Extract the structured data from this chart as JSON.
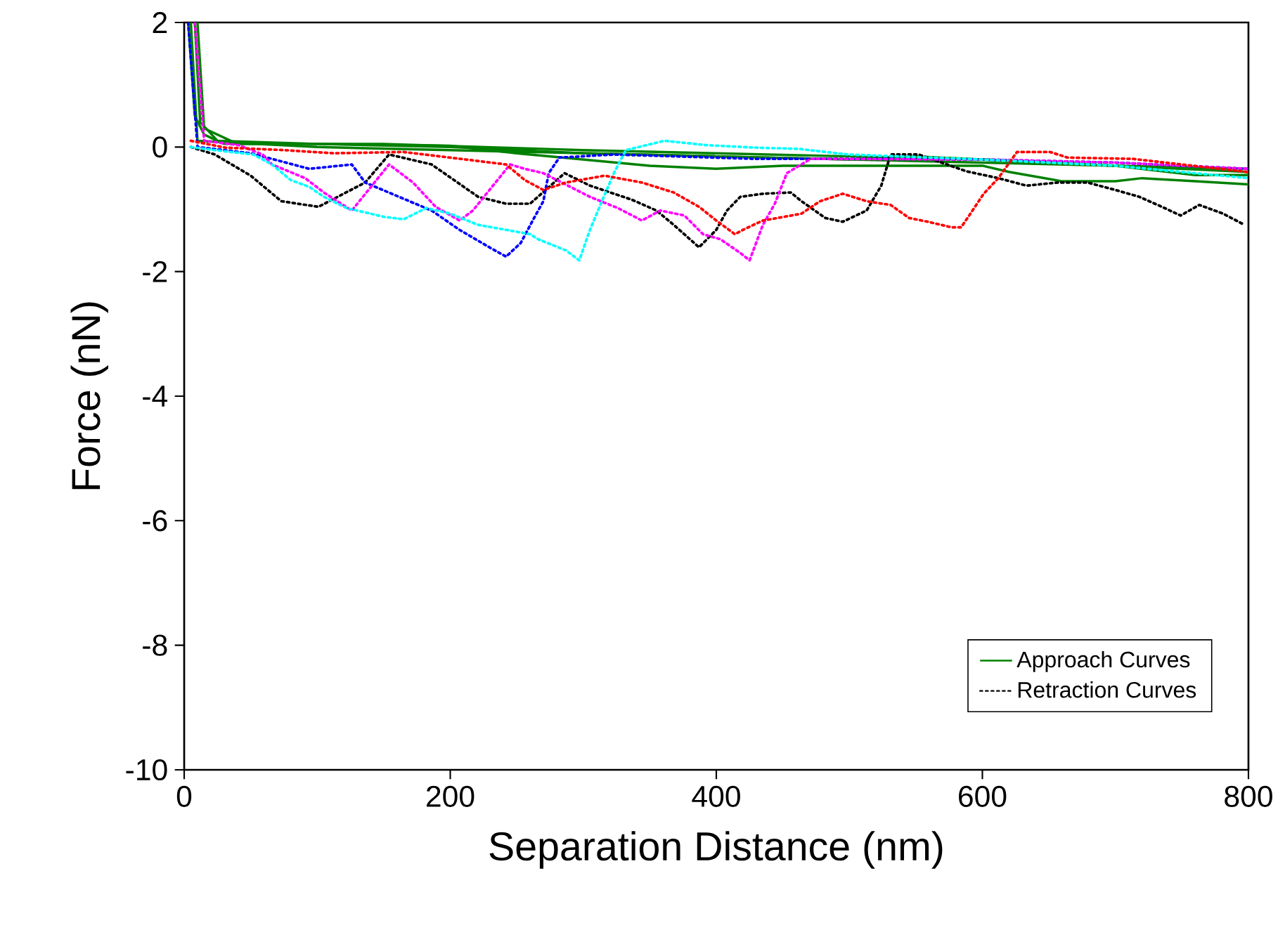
{
  "chart_data": {
    "type": "line",
    "xlabel": "Separation Distance (nm)",
    "ylabel": "Force (nN)",
    "xlim": [
      0,
      800
    ],
    "xticks": [
      0,
      200,
      400,
      600,
      800
    ],
    "ylim": [
      -10,
      2
    ],
    "yticks": [
      -10,
      -8,
      -6,
      -4,
      -2,
      0,
      2
    ],
    "grid": false,
    "legend": "bottom right",
    "series": [
      {
        "name": "Approach Curves",
        "color": "#008000",
        "line_style": "solid",
        "x": [
          3,
          8,
          15,
          30,
          100,
          200,
          300,
          400,
          500,
          600,
          700,
          800
        ],
        "values": [
          2,
          0.5,
          0.2,
          0.05,
          0.05,
          0.0,
          -0.1,
          -0.15,
          -0.2,
          -0.25,
          -0.3,
          -0.4
        ]
      },
      {
        "color": "#008000",
        "line_style": "solid",
        "x": [
          8,
          12,
          25,
          100,
          200,
          250,
          300,
          350,
          400,
          450,
          500,
          550,
          600,
          620,
          660,
          700,
          720,
          760,
          800
        ],
        "values": [
          2,
          0.4,
          0.1,
          0.05,
          0.02,
          -0.1,
          -0.2,
          -0.3,
          -0.35,
          -0.3,
          -0.3,
          -0.3,
          -0.3,
          -0.4,
          -0.55,
          -0.55,
          -0.5,
          -0.55,
          -0.6
        ]
      },
      {
        "color": "#008000",
        "line_style": "solid",
        "x": [
          10,
          15,
          40,
          150,
          300,
          400,
          500,
          600,
          650,
          700,
          760,
          800
        ],
        "values": [
          2,
          0.3,
          0.05,
          0.05,
          -0.05,
          -0.1,
          -0.15,
          -0.2,
          -0.25,
          -0.3,
          -0.45,
          -0.45
        ]
      },
      {
        "color": "#008000",
        "line_style": "solid",
        "x": [
          5,
          10,
          100,
          200,
          300,
          400,
          500,
          550,
          600,
          700,
          800
        ],
        "values": [
          2,
          0.1,
          0.0,
          -0.05,
          -0.1,
          -0.15,
          -0.2,
          -0.15,
          -0.2,
          -0.3,
          -0.35
        ]
      },
      {
        "name": "Retraction Curves",
        "color": "#000000",
        "line_style": "dotted",
        "x": [
          5,
          23,
          50,
          73,
          101,
          136,
          154,
          186,
          221,
          242,
          260,
          286,
          305,
          337,
          355,
          368,
          387,
          400,
          408,
          418,
          435,
          456,
          464,
          482,
          495,
          513,
          524,
          531,
          552,
          588,
          612,
          633,
          657,
          679,
          700,
          718,
          735,
          749,
          763,
          781,
          797
        ],
        "values": [
          0,
          -0.12,
          -0.46,
          -0.87,
          -0.96,
          -0.57,
          -0.12,
          -0.28,
          -0.8,
          -0.91,
          -0.91,
          -0.42,
          -0.62,
          -0.85,
          -1.02,
          -1.25,
          -1.61,
          -1.33,
          -1.02,
          -0.8,
          -0.75,
          -0.73,
          -0.87,
          -1.14,
          -1.2,
          -1.02,
          -0.62,
          -0.12,
          -0.12,
          -0.39,
          -0.5,
          -0.62,
          -0.57,
          -0.57,
          -0.69,
          -0.8,
          -0.96,
          -1.1,
          -0.93,
          -1.07,
          -1.25
        ]
      },
      {
        "color": "#0000ff",
        "line_style": "dotted",
        "x": [
          3,
          10,
          50,
          94,
          126,
          136,
          186,
          207,
          231,
          242,
          253,
          263,
          270,
          274,
          282,
          323,
          429,
          527,
          600,
          700,
          800
        ],
        "values": [
          2,
          0,
          -0.1,
          -0.35,
          -0.28,
          -0.57,
          -1.02,
          -1.33,
          -1.63,
          -1.76,
          -1.54,
          -1.14,
          -0.87,
          -0.42,
          -0.17,
          -0.12,
          -0.19,
          -0.19,
          -0.2,
          -0.25,
          -0.35
        ]
      },
      {
        "color": "#ff00ff",
        "line_style": "dotted",
        "x": [
          8,
          15,
          41,
          59,
          66,
          91,
          105,
          126,
          154,
          172,
          189,
          207,
          217,
          245,
          256,
          270,
          305,
          326,
          344,
          358,
          376,
          390,
          403,
          418,
          425,
          435,
          444,
          453,
          471,
          600,
          700,
          800
        ],
        "values": [
          2,
          0.1,
          0.03,
          -0.12,
          -0.28,
          -0.5,
          -0.73,
          -1.02,
          -0.28,
          -0.57,
          -0.96,
          -1.18,
          -1.02,
          -0.28,
          -0.35,
          -0.42,
          -0.8,
          -0.98,
          -1.18,
          -1.02,
          -1.1,
          -1.4,
          -1.48,
          -1.7,
          -1.82,
          -1.25,
          -0.91,
          -0.42,
          -0.19,
          -0.2,
          -0.25,
          -0.35
        ]
      },
      {
        "color": "#00ffff",
        "line_style": "dotted",
        "x": [
          5,
          23,
          52,
          66,
          80,
          94,
          105,
          122,
          150,
          165,
          182,
          200,
          221,
          242,
          260,
          266,
          287,
          297,
          305,
          314,
          323,
          332,
          361,
          393,
          429,
          462,
          499,
          600,
          700,
          800
        ],
        "values": [
          0,
          -0.05,
          -0.12,
          -0.28,
          -0.53,
          -0.64,
          -0.8,
          -0.98,
          -1.12,
          -1.16,
          -0.98,
          -1.07,
          -1.25,
          -1.33,
          -1.4,
          -1.48,
          -1.66,
          -1.82,
          -1.33,
          -0.87,
          -0.42,
          -0.05,
          0.1,
          0.03,
          -0.01,
          -0.03,
          -0.12,
          -0.2,
          -0.3,
          -0.5
        ]
      },
      {
        "color": "#ff0000",
        "line_style": "dotted",
        "x": [
          5,
          31,
          76,
          112,
          165,
          200,
          242,
          256,
          270,
          287,
          316,
          344,
          368,
          387,
          400,
          414,
          420,
          435,
          446,
          464,
          478,
          495,
          513,
          531,
          545,
          559,
          577,
          584,
          591,
          601,
          612,
          626,
          651,
          664,
          713,
          799
        ],
        "values": [
          0.1,
          -0.01,
          -0.05,
          -0.1,
          -0.08,
          -0.17,
          -0.28,
          -0.53,
          -0.69,
          -0.57,
          -0.46,
          -0.57,
          -0.73,
          -0.96,
          -1.18,
          -1.4,
          -1.33,
          -1.18,
          -1.14,
          -1.07,
          -0.87,
          -0.75,
          -0.87,
          -0.93,
          -1.14,
          -1.2,
          -1.29,
          -1.29,
          -1.07,
          -0.75,
          -0.5,
          -0.08,
          -0.08,
          -0.17,
          -0.19,
          -0.4
        ]
      }
    ]
  }
}
